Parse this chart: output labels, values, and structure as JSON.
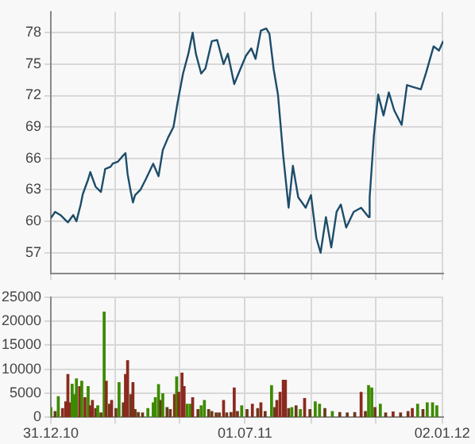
{
  "chart_data": [
    {
      "type": "line",
      "color": "#1d4d6b",
      "tick_labels": "y",
      "grid": true,
      "xlim": [
        "2010-12-31",
        "2012-01-03"
      ],
      "ylim": [
        55,
        80
      ],
      "yticks": [
        57,
        60,
        63,
        66,
        69,
        72,
        75,
        78
      ],
      "xticks": [
        {
          "value": "2010-12-31",
          "label": null
        },
        {
          "value": "2011-03-01",
          "label": null
        },
        {
          "value": "2011-05-01",
          "label": null
        },
        {
          "value": "2011-07-01",
          "label": null
        },
        {
          "value": "2011-09-01",
          "label": null
        },
        {
          "value": "2011-11-01",
          "label": null
        },
        {
          "value": "2012-01-02",
          "label": null
        }
      ],
      "x": [
        "2010-12-31",
        "2011-01-04",
        "2011-01-09",
        "2011-01-14",
        "2011-01-16",
        "2011-01-21",
        "2011-01-24",
        "2011-01-28",
        "2011-01-30",
        "2011-02-04",
        "2011-02-06",
        "2011-02-11",
        "2011-02-16",
        "2011-02-20",
        "2011-02-25",
        "2011-02-27",
        "2011-03-04",
        "2011-03-09",
        "2011-03-11",
        "2011-03-13",
        "2011-03-16",
        "2011-03-18",
        "2011-03-20",
        "2011-03-25",
        "2011-03-30",
        "2011-04-06",
        "2011-04-11",
        "2011-04-15",
        "2011-04-20",
        "2011-04-25",
        "2011-04-29",
        "2011-05-04",
        "2011-05-09",
        "2011-05-13",
        "2011-05-16",
        "2011-05-21",
        "2011-05-25",
        "2011-05-31",
        "2011-06-05",
        "2011-06-11",
        "2011-06-15",
        "2011-06-21",
        "2011-06-25",
        "2011-07-02",
        "2011-07-07",
        "2011-07-11",
        "2011-07-16",
        "2011-07-21",
        "2011-07-24",
        "2011-07-28",
        "2011-08-01",
        "2011-08-06",
        "2011-08-11",
        "2011-08-15",
        "2011-08-20",
        "2011-08-27",
        "2011-09-01",
        "2011-09-06",
        "2011-09-10",
        "2011-09-15",
        "2011-09-20",
        "2011-09-25",
        "2011-09-29",
        "2011-10-04",
        "2011-10-11",
        "2011-10-18",
        "2011-10-25",
        "2011-10-26",
        "2011-10-30",
        "2011-11-03",
        "2011-11-08",
        "2011-11-13",
        "2011-11-18",
        "2011-11-25",
        "2011-11-30",
        "2011-12-06",
        "2011-12-13",
        "2011-12-18",
        "2011-12-25",
        "2011-12-30",
        "2012-01-03"
      ],
      "values": [
        60.3,
        60.9,
        60.6,
        60.1,
        59.9,
        60.6,
        60.0,
        61.6,
        62.6,
        64.0,
        64.7,
        63.3,
        62.8,
        65.0,
        65.2,
        65.5,
        65.7,
        66.3,
        66.5,
        64.5,
        62.8,
        61.8,
        62.5,
        63.0,
        64.0,
        65.5,
        64.3,
        66.8,
        68.0,
        69.0,
        71.4,
        74.1,
        76.0,
        78.0,
        76.0,
        74.1,
        74.6,
        77.2,
        77.3,
        75.0,
        76.0,
        73.1,
        74.1,
        75.8,
        76.5,
        75.5,
        78.2,
        78.4,
        77.9,
        74.5,
        72.1,
        66.2,
        61.3,
        65.3,
        62.3,
        61.3,
        62.5,
        58.4,
        57.0,
        60.4,
        57.5,
        60.9,
        61.6,
        59.4,
        60.9,
        61.3,
        60.4,
        62.3,
        68.2,
        72.1,
        70.1,
        72.3,
        70.6,
        69.2,
        73.0,
        72.8,
        72.6,
        74.2,
        76.7,
        76.3,
        77.2
      ]
    },
    {
      "type": "bar",
      "grid": true,
      "xlim": [
        "2010-12-31",
        "2012-01-03"
      ],
      "ylim": [
        0,
        25000
      ],
      "yticks": [
        0,
        5000,
        10000,
        15000,
        20000,
        25000
      ],
      "xticks": [
        {
          "value": "2010-12-31",
          "label": "31.12.10"
        },
        {
          "value": "2011-03-01",
          "label": null
        },
        {
          "value": "2011-05-01",
          "label": null
        },
        {
          "value": "2011-07-01",
          "label": "01.07.11"
        },
        {
          "value": "2011-09-01",
          "label": null
        },
        {
          "value": "2011-11-01",
          "label": null
        },
        {
          "value": "2012-01-02",
          "label": "02.01.12"
        }
      ],
      "x": [
        "2010-12-31",
        "2011-01-04",
        "2011-01-07",
        "2011-01-11",
        "2011-01-14",
        "2011-01-16",
        "2011-01-18",
        "2011-01-20",
        "2011-01-22",
        "2011-01-24",
        "2011-01-27",
        "2011-01-29",
        "2011-02-01",
        "2011-02-04",
        "2011-02-06",
        "2011-02-08",
        "2011-02-11",
        "2011-02-13",
        "2011-02-16",
        "2011-02-19",
        "2011-02-21",
        "2011-02-24",
        "2011-02-26",
        "2011-03-02",
        "2011-03-05",
        "2011-03-09",
        "2011-03-11",
        "2011-03-13",
        "2011-03-16",
        "2011-03-18",
        "2011-03-20",
        "2011-03-23",
        "2011-03-27",
        "2011-04-01",
        "2011-04-06",
        "2011-04-08",
        "2011-04-11",
        "2011-04-13",
        "2011-04-15",
        "2011-04-19",
        "2011-04-22",
        "2011-04-26",
        "2011-04-28",
        "2011-04-30",
        "2011-05-03",
        "2011-05-05",
        "2011-05-08",
        "2011-05-11",
        "2011-05-13",
        "2011-05-18",
        "2011-05-21",
        "2011-05-24",
        "2011-05-28",
        "2011-05-31",
        "2011-06-04",
        "2011-06-07",
        "2011-06-11",
        "2011-06-14",
        "2011-06-18",
        "2011-06-21",
        "2011-06-24",
        "2011-06-28",
        "2011-07-03",
        "2011-07-08",
        "2011-07-13",
        "2011-07-16",
        "2011-07-20",
        "2011-07-26",
        "2011-07-29",
        "2011-07-31",
        "2011-08-03",
        "2011-08-06",
        "2011-08-08",
        "2011-08-11",
        "2011-08-14",
        "2011-08-18",
        "2011-08-22",
        "2011-08-26",
        "2011-08-31",
        "2011-09-05",
        "2011-09-09",
        "2011-09-14",
        "2011-09-21",
        "2011-09-28",
        "2011-10-05",
        "2011-10-12",
        "2011-10-18",
        "2011-10-22",
        "2011-10-25",
        "2011-10-28",
        "2011-10-31",
        "2011-11-05",
        "2011-11-10",
        "2011-11-17",
        "2011-11-24",
        "2011-12-01",
        "2011-12-05",
        "2011-12-10",
        "2011-12-15",
        "2011-12-19",
        "2011-12-24",
        "2011-12-28"
      ],
      "values": [
        2000,
        1200,
        4300,
        1800,
        3200,
        8900,
        3000,
        6900,
        4700,
        8000,
        6400,
        7500,
        4100,
        6400,
        2400,
        3500,
        1800,
        2400,
        900,
        21900,
        7500,
        2700,
        3500,
        1800,
        7200,
        3000,
        8900,
        11800,
        4700,
        7200,
        1600,
        1000,
        900,
        1800,
        3000,
        4100,
        6800,
        3500,
        4900,
        2000,
        1600,
        4700,
        8400,
        5200,
        9200,
        6400,
        2700,
        2700,
        4100,
        1600,
        2400,
        3500,
        1600,
        1200,
        900,
        900,
        3500,
        900,
        1000,
        6100,
        1200,
        2400,
        1600,
        2700,
        1800,
        3000,
        1200,
        6600,
        2000,
        3500,
        5200,
        7700,
        7700,
        1800,
        2000,
        2400,
        1600,
        3900,
        1600,
        3200,
        2700,
        1800,
        1200,
        1000,
        900,
        1000,
        5200,
        1200,
        6600,
        6100,
        2000,
        2700,
        900,
        1100,
        900,
        1200,
        1800,
        2700,
        1600,
        3000,
        3000,
        2400
      ],
      "colors": [
        "#3d8a00",
        "#6b3a1a",
        "#3d8a00",
        "#8b2a1e",
        "#8b2a1e",
        "#8b2a1e",
        "#8b2a1e",
        "#3d8a00",
        "#3d8a00",
        "#3d8a00",
        "#8b2a1e",
        "#3d8a00",
        "#8b2a1e",
        "#3d8a00",
        "#8b2a1e",
        "#8b2a1e",
        "#6b3a1a",
        "#3d8a00",
        "#6b3a1a",
        "#3d8a00",
        "#8b2a1e",
        "#6b3a1a",
        "#8b2a1e",
        "#6b3a1a",
        "#3d8a00",
        "#6b3a1a",
        "#8b2a1e",
        "#8b2a1e",
        "#6b3a1a",
        "#8b2a1e",
        "#6b3a1a",
        "#6b3a1a",
        "#6b3a1a",
        "#3d8a00",
        "#3d8a00",
        "#3d8a00",
        "#3d8a00",
        "#6b3a1a",
        "#3d8a00",
        "#6b3a1a",
        "#6b3a1a",
        "#8b2a1e",
        "#3d8a00",
        "#8b2a1e",
        "#8b2a1e",
        "#8b2a1e",
        "#3d8a00",
        "#3d8a00",
        "#8b2a1e",
        "#6b3a1a",
        "#3d8a00",
        "#3d8a00",
        "#6b3a1a",
        "#6b3a1a",
        "#6b3a1a",
        "#6b3a1a",
        "#8b2a1e",
        "#6b3a1a",
        "#6b3a1a",
        "#8b2a1e",
        "#6b3a1a",
        "#3d8a00",
        "#6b3a1a",
        "#8b2a1e",
        "#6b3a1a",
        "#8b2a1e",
        "#6b3a1a",
        "#3d8a00",
        "#6b3a1a",
        "#8b2a1e",
        "#8b2a1e",
        "#8b2a1e",
        "#8b2a1e",
        "#6b3a1a",
        "#3d8a00",
        "#6b3a1a",
        "#3d8a00",
        "#8b2a1e",
        "#6b3a1a",
        "#3d8a00",
        "#3d8a00",
        "#6b3a1a",
        "#3d8a00",
        "#6b3a1a",
        "#6b3a1a",
        "#6b3a1a",
        "#8b2a1e",
        "#6b3a1a",
        "#3d8a00",
        "#3d8a00",
        "#6b3a1a",
        "#3d8a00",
        "#6b3a1a",
        "#8b2a1e",
        "#6b3a1a",
        "#6b3a1a",
        "#8b2a1e",
        "#3d8a00",
        "#6b3a1a",
        "#3d8a00",
        "#3d8a00",
        "#3d8a00"
      ]
    }
  ]
}
